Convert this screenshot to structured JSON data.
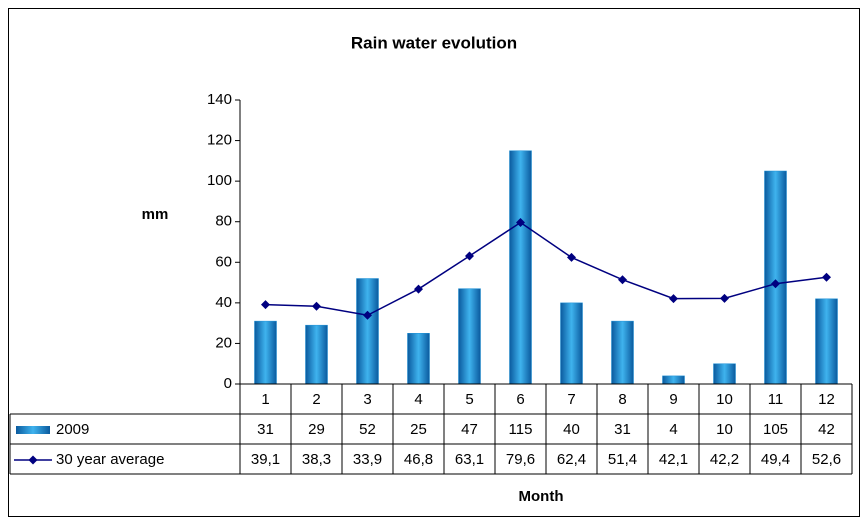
{
  "chart_data": {
    "type": "bar-line",
    "title": "Rain water evolution",
    "y_label": "mm",
    "x_label": "Month",
    "categories": [
      "1",
      "2",
      "3",
      "4",
      "5",
      "6",
      "7",
      "8",
      "9",
      "10",
      "11",
      "12"
    ],
    "series": [
      {
        "name": "2009",
        "type": "bar",
        "color": "#1a8fd6",
        "values": [
          31,
          29,
          52,
          25,
          47,
          115,
          40,
          31,
          4,
          10,
          105,
          42
        ]
      },
      {
        "name": "30 year average",
        "type": "line",
        "color": "#000080",
        "values": [
          39.1,
          38.3,
          33.9,
          46.8,
          63.1,
          79.6,
          62.4,
          51.4,
          42.1,
          42.2,
          49.4,
          52.6
        ],
        "value_labels": [
          "39,1",
          "38,3",
          "33,9",
          "46,8",
          "63,1",
          "79,6",
          "62,4",
          "51,4",
          "42,1",
          "42,2",
          "49,4",
          "52,6"
        ]
      }
    ],
    "ylim": [
      0,
      140
    ],
    "yticks": [
      0,
      20,
      40,
      60,
      80,
      100,
      120,
      140
    ]
  }
}
